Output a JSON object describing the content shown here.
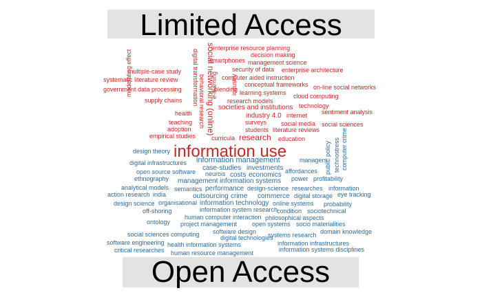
{
  "header": {
    "title": "Limited Access"
  },
  "footer": {
    "title": "Open Access"
  },
  "colors": {
    "limited": "#c62828",
    "open": "#2f6b9a",
    "banner_bg": "#e3e3e3"
  },
  "limited_terms": [
    "enterprise resource planning",
    "decision making",
    "smartphones",
    "management science",
    "multiple-case study",
    "security of data",
    "enterprise architecture",
    "systematic literature review",
    "computer aided instruction",
    "conceptual frameworks",
    "on-line social networks",
    "government data processing",
    "blending",
    "learning systems",
    "cloud computing",
    "supply chains",
    "research models",
    "technology",
    "societies and institutions",
    "health",
    "sentiment analysis",
    "industry 4.0",
    "internet",
    "teaching",
    "surveys",
    "social media",
    "social sciences",
    "adoption",
    "students",
    "literature reviews",
    "empirical studies",
    "curricula",
    "research",
    "education",
    "digital transformation",
    "behavioral research",
    "social networking (online)",
    "moderating effect",
    "e-learning",
    "industry",
    "information use"
  ],
  "open_terms": [
    "design theory",
    "managers",
    "digital infrastructures",
    "information management",
    "case-studies",
    "investments",
    "affordances",
    "public policy",
    "technostress",
    "computer crime",
    "open source software",
    "neurois",
    "costs",
    "economics",
    "power",
    "profitability",
    "ethnography",
    "management information systems",
    "analytical models",
    "semantics",
    "performance",
    "design-science",
    "researches",
    "information",
    "action research",
    "india",
    "outsourcing",
    "crime",
    "commerce",
    "digital storage",
    "eye tracking",
    "design science",
    "organisational",
    "information technology",
    "online systems",
    "probability",
    "off-shoring",
    "information system research",
    "condition",
    "sociotechnical",
    "human computer interaction",
    "philosophical aspects",
    "ontology",
    "project management",
    "open systems",
    "socio materialities",
    "software design",
    "domain knowledge",
    "social sciences computing",
    "digital technologies",
    "systems research",
    "software engineering",
    "health information systems",
    "information infrastructures",
    "critical researches",
    "human resource management",
    "information systems disciplines"
  ]
}
